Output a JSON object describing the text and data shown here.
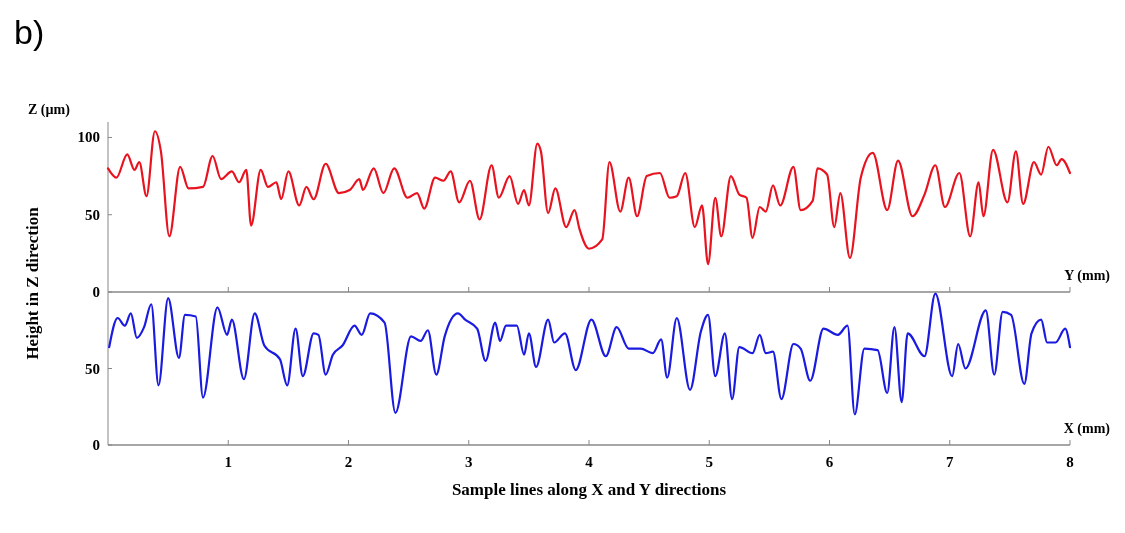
{
  "chart_data": [
    {
      "type": "line",
      "title": "b)",
      "ylabel": "Z (µm)",
      "xlabel": "Y (mm)",
      "xlim": [
        0,
        8
      ],
      "xticks": [
        1,
        2,
        3,
        4,
        5,
        6,
        7,
        8
      ],
      "ylim": [
        0,
        110
      ],
      "yticks": [
        0,
        50,
        100
      ],
      "tick_labels": "y",
      "series": [
        {
          "color": "#e8131f",
          "x": [
            0,
            0.07,
            0.16,
            0.22,
            0.26,
            0.32,
            0.39,
            0.44,
            0.51,
            0.6,
            0.67,
            0.79,
            0.87,
            0.94,
            1.03,
            1.09,
            1.15,
            1.19,
            1.27,
            1.33,
            1.4,
            1.44,
            1.5,
            1.59,
            1.65,
            1.71,
            1.81,
            1.92,
            2.01,
            2.09,
            2.12,
            2.21,
            2.29,
            2.38,
            2.49,
            2.57,
            2.63,
            2.72,
            2.79,
            2.85,
            2.92,
            3.01,
            3.09,
            3.19,
            3.25,
            3.34,
            3.41,
            3.46,
            3.5,
            3.57,
            3.6,
            3.66,
            3.72,
            3.81,
            3.88,
            3.92,
            4,
            4.11,
            4.17,
            4.26,
            4.33,
            4.4,
            4.48,
            4.59,
            4.67,
            4.73,
            4.8,
            4.88,
            4.94,
            4.99,
            5.05,
            5.1,
            5.18,
            5.25,
            5.31,
            5.36,
            5.42,
            5.47,
            5.53,
            5.59,
            5.7,
            5.76,
            5.86,
            5.9,
            5.98,
            6.04,
            6.09,
            6.17,
            6.26,
            6.36,
            6.48,
            6.57,
            6.69,
            6.79,
            6.88,
            6.96,
            7.08,
            7.17,
            7.24,
            7.28,
            7.36,
            7.48,
            7.55,
            7.61,
            7.7,
            7.76,
            7.82,
            7.89,
            7.93,
            8
          ],
          "values": [
            80,
            74,
            89,
            79,
            84,
            62,
            104,
            91,
            36,
            81,
            67,
            68,
            88,
            73,
            78,
            71,
            79,
            43,
            79,
            68,
            71,
            60,
            78,
            56,
            68,
            60,
            83,
            64,
            66,
            73,
            66,
            80,
            64,
            80,
            61,
            64,
            54,
            74,
            72,
            78,
            58,
            72,
            47,
            82,
            61,
            75,
            57,
            66,
            56,
            96,
            91,
            51,
            67,
            42,
            53,
            41,
            28,
            34,
            84,
            52,
            74,
            49,
            75,
            77,
            61,
            62,
            77,
            42,
            56,
            18,
            61,
            36,
            75,
            63,
            61,
            35,
            55,
            52,
            69,
            56,
            81,
            53,
            59,
            80,
            76,
            42,
            64,
            22,
            74,
            90,
            53,
            85,
            49,
            63,
            82,
            55,
            77,
            36,
            71,
            49,
            92,
            58,
            91,
            57,
            84,
            76,
            94,
            82,
            86,
            77
          ]
        }
      ]
    },
    {
      "type": "line",
      "ylabel": "Height in Z direction",
      "xlabel": "X (mm)",
      "xlim": [
        0,
        8
      ],
      "xticks": [
        1,
        2,
        3,
        4,
        5,
        6,
        7,
        8
      ],
      "ylim": [
        0,
        100
      ],
      "yticks": [
        0,
        50
      ],
      "annotations": [
        "Sample lines along X and Y directions"
      ],
      "series": [
        {
          "color": "#1a1ae0",
          "x": [
            0.01,
            0.08,
            0.14,
            0.19,
            0.24,
            0.3,
            0.36,
            0.42,
            0.5,
            0.59,
            0.64,
            0.73,
            0.79,
            0.91,
            0.99,
            1.03,
            1.13,
            1.22,
            1.3,
            1.43,
            1.49,
            1.56,
            1.62,
            1.71,
            1.75,
            1.81,
            1.87,
            1.95,
            2.05,
            2.11,
            2.18,
            2.3,
            2.39,
            2.52,
            2.6,
            2.66,
            2.73,
            2.8,
            2.91,
            2.97,
            3.07,
            3.14,
            3.22,
            3.26,
            3.31,
            3.4,
            3.46,
            3.5,
            3.56,
            3.66,
            3.71,
            3.8,
            3.89,
            4.02,
            4.14,
            4.23,
            4.33,
            4.43,
            4.53,
            4.6,
            4.65,
            4.73,
            4.84,
            4.93,
            4.99,
            5.05,
            5.13,
            5.19,
            5.25,
            5.36,
            5.42,
            5.47,
            5.53,
            5.6,
            5.7,
            5.76,
            5.84,
            5.95,
            6.07,
            6.15,
            6.21,
            6.29,
            6.4,
            6.48,
            6.54,
            6.6,
            6.65,
            6.79,
            6.88,
            7.02,
            7.07,
            7.13,
            7.3,
            7.37,
            7.44,
            7.51,
            7.62,
            7.68,
            7.76,
            7.81,
            7.88,
            7.96,
            8
          ],
          "values": [
            64,
            83,
            78,
            86,
            70,
            77,
            92,
            39,
            96,
            57,
            85,
            84,
            31,
            90,
            72,
            82,
            43,
            86,
            65,
            56,
            39,
            76,
            45,
            73,
            72,
            46,
            59,
            65,
            78,
            72,
            86,
            80,
            21,
            71,
            68,
            75,
            46,
            71,
            86,
            82,
            76,
            55,
            80,
            68,
            78,
            78,
            59,
            73,
            51,
            82,
            67,
            73,
            49,
            82,
            58,
            77,
            63,
            63,
            60,
            69,
            44,
            83,
            36,
            74,
            85,
            45,
            73,
            30,
            64,
            60,
            72,
            60,
            61,
            30,
            66,
            63,
            42,
            76,
            72,
            78,
            20,
            63,
            62,
            34,
            77,
            28,
            73,
            58,
            99,
            45,
            66,
            50,
            88,
            46,
            87,
            85,
            40,
            73,
            82,
            67,
            67,
            76,
            64
          ]
        }
      ]
    }
  ]
}
